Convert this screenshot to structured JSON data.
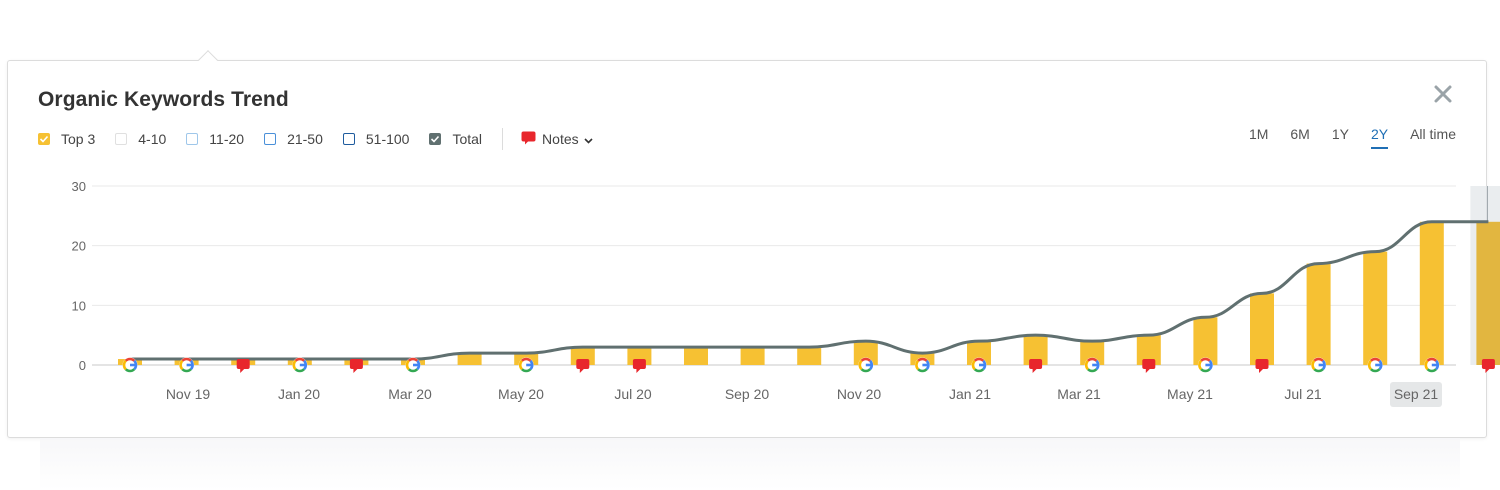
{
  "widget": {
    "title": "Organic Keywords Trend",
    "close_icon": "close-icon"
  },
  "legend": {
    "items": [
      {
        "label": "Top 3",
        "checked": true,
        "color": "#f6c133"
      },
      {
        "label": "4-10",
        "checked": false,
        "color": "#e0e0e0"
      },
      {
        "label": "11-20",
        "checked": false,
        "color": "#9fc7ea"
      },
      {
        "label": "21-50",
        "checked": false,
        "color": "#4a90d9"
      },
      {
        "label": "51-100",
        "checked": false,
        "color": "#1f5c9e"
      },
      {
        "label": "Total",
        "checked": true,
        "color": "#607070"
      }
    ],
    "notes_label": "Notes",
    "notes_icon": "speech-bubble-icon"
  },
  "ranges": {
    "options": [
      "1M",
      "6M",
      "1Y",
      "2Y",
      "All time"
    ],
    "selected": "2Y"
  },
  "chart_data": {
    "type": "bar",
    "title": "",
    "ylim": [
      0,
      30
    ],
    "y_ticks": [
      "30",
      "20",
      "10",
      "0"
    ],
    "grid": true,
    "x_tick_labels": [
      "Nov 19",
      "Jan 20",
      "Mar 20",
      "May 20",
      "Jul 20",
      "Sep 20",
      "Nov 20",
      "Jan 21",
      "Mar 21",
      "May 21",
      "Jul 21",
      "Sep 21"
    ],
    "highlighted_label": "Sep 21",
    "series": [
      {
        "name": "Top 3",
        "type": "bar",
        "color": "#f6c133",
        "values": [
          1,
          1,
          1,
          1,
          1,
          1,
          2,
          2,
          3,
          3,
          3,
          3,
          3,
          4,
          2,
          4,
          5,
          4,
          5,
          8,
          12,
          17,
          19,
          24,
          24
        ]
      },
      {
        "name": "Total",
        "type": "line",
        "color": "#607070",
        "values": [
          1,
          1,
          1,
          1,
          1,
          1,
          2,
          2,
          3,
          3,
          3,
          3,
          3,
          4,
          2,
          4,
          5,
          4,
          5,
          8,
          12,
          17,
          19,
          24,
          24
        ]
      }
    ],
    "markers": [
      "google",
      "google",
      "note",
      "google",
      "note",
      "google",
      "none",
      "google",
      "note",
      "note",
      "none",
      "none",
      "none",
      "google",
      "google",
      "google",
      "note",
      "google",
      "note",
      "google",
      "note",
      "google",
      "google",
      "google",
      "note"
    ]
  }
}
